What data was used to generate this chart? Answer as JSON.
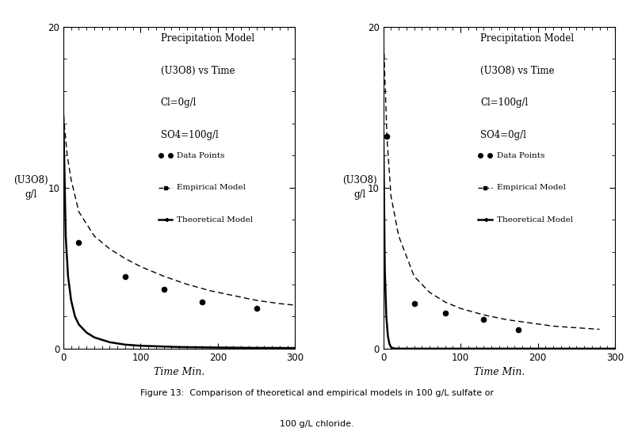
{
  "fig_width": 8.0,
  "fig_height": 5.64,
  "bg_color": "#ffffff",
  "line_color": "#000000",
  "left_title_line1": "Precipitation Model",
  "left_title_line2": "(U3O8) vs Time",
  "left_title_line3": "Cl=0g/l",
  "left_title_line4": "SO4=100g/l",
  "right_title_line1": "Precipitation Model",
  "right_title_line2": "(U3O8) vs Time",
  "right_title_line3": "Cl=100g/l",
  "right_title_line4": "SO4=0g/l",
  "ylabel_line1": "(U3O8)",
  "ylabel_line2": "g/l",
  "xlabel": "Time Min.",
  "ylim": [
    0,
    20
  ],
  "xlim": [
    0,
    300
  ],
  "yticks": [
    0,
    10,
    20
  ],
  "xticks": [
    0,
    100,
    200,
    300
  ],
  "left_data_points_x": [
    20,
    80,
    130,
    180,
    250
  ],
  "left_data_points_y": [
    6.6,
    4.5,
    3.7,
    2.9,
    2.5
  ],
  "left_empirical_x": [
    0,
    5,
    10,
    20,
    40,
    60,
    80,
    100,
    130,
    160,
    190,
    220,
    250,
    280,
    300
  ],
  "left_empirical_y": [
    14.5,
    12.0,
    10.5,
    8.5,
    7.0,
    6.2,
    5.6,
    5.1,
    4.5,
    4.0,
    3.6,
    3.3,
    3.0,
    2.8,
    2.7
  ],
  "left_theoretical_x": [
    0,
    3,
    6,
    10,
    15,
    20,
    30,
    40,
    60,
    80,
    100,
    150,
    200,
    250,
    300
  ],
  "left_theoretical_y": [
    14.5,
    7.0,
    4.5,
    3.0,
    2.0,
    1.5,
    1.0,
    0.7,
    0.4,
    0.25,
    0.18,
    0.1,
    0.07,
    0.05,
    0.04
  ],
  "right_data_points_x": [
    5,
    40,
    80,
    130,
    175
  ],
  "right_data_points_y": [
    13.2,
    2.8,
    2.2,
    1.8,
    1.2
  ],
  "right_empirical_x": [
    0,
    2,
    5,
    10,
    20,
    40,
    60,
    80,
    100,
    130,
    160,
    190,
    220,
    250,
    280
  ],
  "right_empirical_y": [
    20.0,
    17.0,
    13.0,
    9.5,
    7.0,
    4.5,
    3.5,
    2.9,
    2.5,
    2.1,
    1.8,
    1.6,
    1.4,
    1.3,
    1.2
  ],
  "right_theoretical_x": [
    0,
    2,
    4,
    6,
    8,
    10,
    12,
    15,
    20,
    30,
    40,
    60,
    80,
    100,
    150,
    200,
    250,
    300
  ],
  "right_theoretical_y": [
    14.5,
    5.0,
    2.0,
    0.8,
    0.3,
    0.1,
    0.04,
    0.01,
    0.004,
    0.002,
    0.001,
    0.001,
    0.001,
    0.001,
    0.001,
    0.001,
    0.001,
    0.001
  ],
  "caption": "Figure 13:  Comparison of theoretical and empirical models in 100 g/L sulfate or\n100 g/L chloride."
}
